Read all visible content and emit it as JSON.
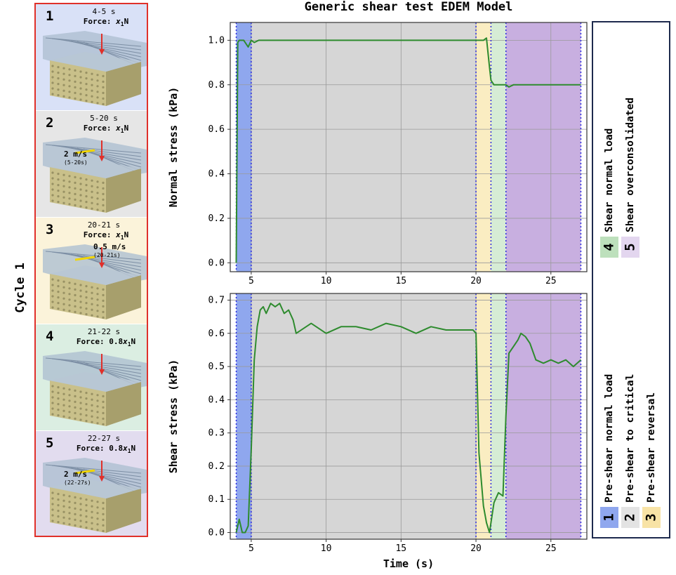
{
  "cycle_label": "Cycle 1",
  "stages": [
    {
      "num": "1",
      "time": "4-5 s",
      "force_prefix": "Force: ",
      "force_coef": "",
      "force_var": "x",
      "force_sub": "1",
      "force_unit": "N",
      "speed": "",
      "speed_note": "",
      "bg": "#d9e1f7"
    },
    {
      "num": "2",
      "time": "5-20 s",
      "force_prefix": "Force: ",
      "force_coef": "",
      "force_var": "x",
      "force_sub": "1",
      "force_unit": "N",
      "speed": "2 m/s",
      "speed_note": "(5-20s)",
      "bg": "#e6e6e6"
    },
    {
      "num": "3",
      "time": "20-21 s",
      "force_prefix": "Force: ",
      "force_coef": "",
      "force_var": "x",
      "force_sub": "1",
      "force_unit": "N",
      "speed": "0.5 m/s",
      "speed_note": "(20-21s)",
      "bg": "#fbf3da"
    },
    {
      "num": "4",
      "time": "21-22 s",
      "force_prefix": "Force: ",
      "force_coef": "0.8",
      "force_var": "x",
      "force_sub": "1",
      "force_unit": "N",
      "speed": "",
      "speed_note": "",
      "bg": "#dbeee2"
    },
    {
      "num": "5",
      "time": "22-27 s",
      "force_prefix": "Force: ",
      "force_coef": "0.8",
      "force_var": "x",
      "force_sub": "1",
      "force_unit": "N",
      "speed": "2 m/s",
      "speed_note": "(22-27s)",
      "bg": "#e2dcef"
    }
  ],
  "legend": [
    {
      "num": "1",
      "label": "Pre-shear normal load",
      "color": "#8fa7ee"
    },
    {
      "num": "2",
      "label": "Pre-shear to critical",
      "color": "#e3e3e3"
    },
    {
      "num": "3",
      "label": "Pre-shear reversal",
      "color": "#f8e3a6"
    },
    {
      "num": "4",
      "label": "Shear normal load",
      "color": "#bde0bc"
    },
    {
      "num": "5",
      "label": "Shear overconsolidated",
      "color": "#e3d6ef"
    }
  ],
  "chart_data": [
    {
      "type": "line",
      "title": "Generic shear test EDEM Model",
      "xlabel": "",
      "ylabel": "Normal stress (kPa)",
      "xlim": [
        3.6,
        27.4
      ],
      "ylim": [
        -0.04,
        1.08
      ],
      "xticks": [
        "5",
        "10",
        "15",
        "20",
        "25"
      ],
      "yticks": [
        "0.0",
        "0.2",
        "0.4",
        "0.6",
        "0.8",
        "1.0"
      ],
      "grid": true,
      "line_color": "#2e8b2e",
      "regions": [
        {
          "x0": 4,
          "x1": 5,
          "color": "#8fa7ee"
        },
        {
          "x0": 5,
          "x1": 20,
          "color": "#d6d6d6"
        },
        {
          "x0": 20,
          "x1": 21,
          "color": "#faedc2"
        },
        {
          "x0": 21,
          "x1": 22,
          "color": "#d6ecd5"
        },
        {
          "x0": 22,
          "x1": 27,
          "color": "#c8afe0"
        }
      ],
      "boundaries": [
        4,
        5,
        20,
        21,
        22,
        27
      ],
      "x": [
        4.0,
        4.1,
        4.2,
        4.5,
        4.8,
        5.0,
        5.2,
        5.5,
        6,
        7,
        8,
        9,
        10,
        11,
        12,
        13,
        14,
        15,
        16,
        17,
        18,
        19,
        20,
        20.5,
        20.7,
        20.9,
        21.0,
        21.2,
        21.5,
        22.0,
        22.2,
        22.5,
        23,
        24,
        25,
        26,
        27
      ],
      "y": [
        0.0,
        0.99,
        1.0,
        1.0,
        0.97,
        1.0,
        0.99,
        1.0,
        1.0,
        1.0,
        1.0,
        1.0,
        1.0,
        1.0,
        1.0,
        1.0,
        1.0,
        1.0,
        1.0,
        1.0,
        1.0,
        1.0,
        1.0,
        1.0,
        1.01,
        0.88,
        0.82,
        0.8,
        0.8,
        0.8,
        0.79,
        0.8,
        0.8,
        0.8,
        0.8,
        0.8,
        0.8
      ]
    },
    {
      "type": "line",
      "xlabel": "Time (s)",
      "ylabel": "Shear stress (kPa)",
      "xlim": [
        3.6,
        27.4
      ],
      "ylim": [
        -0.02,
        0.72
      ],
      "xticks": [
        "5",
        "10",
        "15",
        "20",
        "25"
      ],
      "yticks": [
        "0.0",
        "0.1",
        "0.2",
        "0.3",
        "0.4",
        "0.5",
        "0.6",
        "0.7"
      ],
      "grid": true,
      "line_color": "#2e8b2e",
      "regions": [
        {
          "x0": 4,
          "x1": 5,
          "color": "#8fa7ee"
        },
        {
          "x0": 5,
          "x1": 20,
          "color": "#d6d6d6"
        },
        {
          "x0": 20,
          "x1": 21,
          "color": "#faedc2"
        },
        {
          "x0": 21,
          "x1": 22,
          "color": "#d6ecd5"
        },
        {
          "x0": 22,
          "x1": 27,
          "color": "#c8afe0"
        }
      ],
      "boundaries": [
        4,
        5,
        20,
        21,
        22,
        27
      ],
      "x": [
        4.0,
        4.2,
        4.4,
        4.6,
        4.8,
        5.0,
        5.2,
        5.4,
        5.6,
        5.8,
        6.0,
        6.3,
        6.6,
        6.9,
        7.2,
        7.5,
        7.8,
        8,
        9,
        10,
        11,
        12,
        13,
        14,
        15,
        16,
        17,
        18,
        19,
        19.8,
        20.0,
        20.2,
        20.5,
        20.7,
        20.9,
        21.2,
        21.5,
        21.8,
        22.0,
        22.2,
        22.5,
        22.8,
        23.0,
        23.3,
        23.6,
        24,
        24.5,
        25,
        25.5,
        26,
        26.5,
        27
      ],
      "y": [
        0.0,
        0.04,
        0.0,
        0.0,
        0.02,
        0.25,
        0.52,
        0.62,
        0.67,
        0.68,
        0.66,
        0.69,
        0.68,
        0.69,
        0.66,
        0.67,
        0.64,
        0.6,
        0.63,
        0.6,
        0.62,
        0.62,
        0.61,
        0.63,
        0.62,
        0.6,
        0.62,
        0.61,
        0.61,
        0.61,
        0.6,
        0.24,
        0.08,
        0.03,
        0.0,
        0.09,
        0.12,
        0.11,
        0.35,
        0.54,
        0.56,
        0.58,
        0.6,
        0.59,
        0.57,
        0.52,
        0.51,
        0.52,
        0.51,
        0.52,
        0.5,
        0.52
      ]
    }
  ]
}
